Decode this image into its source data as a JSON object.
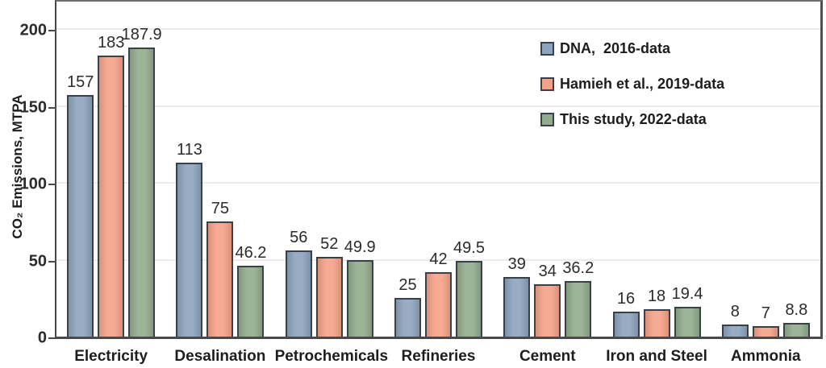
{
  "chart_data": {
    "type": "bar",
    "title": "",
    "ylabel": "CO₂ Emissions, MTPA",
    "xlabel": "",
    "categories": [
      "Electricity",
      "Desalination",
      "Petrochemicals",
      "Refineries",
      "Cement",
      "Iron and Steel",
      "Ammonia"
    ],
    "series": [
      {
        "name": "DNA,  2016-data",
        "color": "#8CA3BD",
        "values": [
          157,
          113,
          56,
          25,
          39,
          16,
          8
        ]
      },
      {
        "name": "Hamieh et al., 2019-data",
        "color": "#F4A287",
        "values": [
          183,
          75,
          52,
          42,
          34,
          18,
          7
        ]
      },
      {
        "name": "This study, 2022-data",
        "color": "#92AB8C",
        "values": [
          187.9,
          46.2,
          49.9,
          49.5,
          36.2,
          19.4,
          8.8
        ]
      }
    ],
    "yticks": [
      0,
      50,
      100,
      150,
      200
    ],
    "ylim": [
      0,
      219
    ],
    "grid": true,
    "legend_position": "upper right"
  },
  "colors": {
    "bar_border": "#3A4049",
    "grid": "#ECECEC",
    "axis": "#4A4A4A",
    "frame_top": "#6E6E6E",
    "frame_right": "#4F4F4F",
    "text": "#2B2B2B"
  }
}
